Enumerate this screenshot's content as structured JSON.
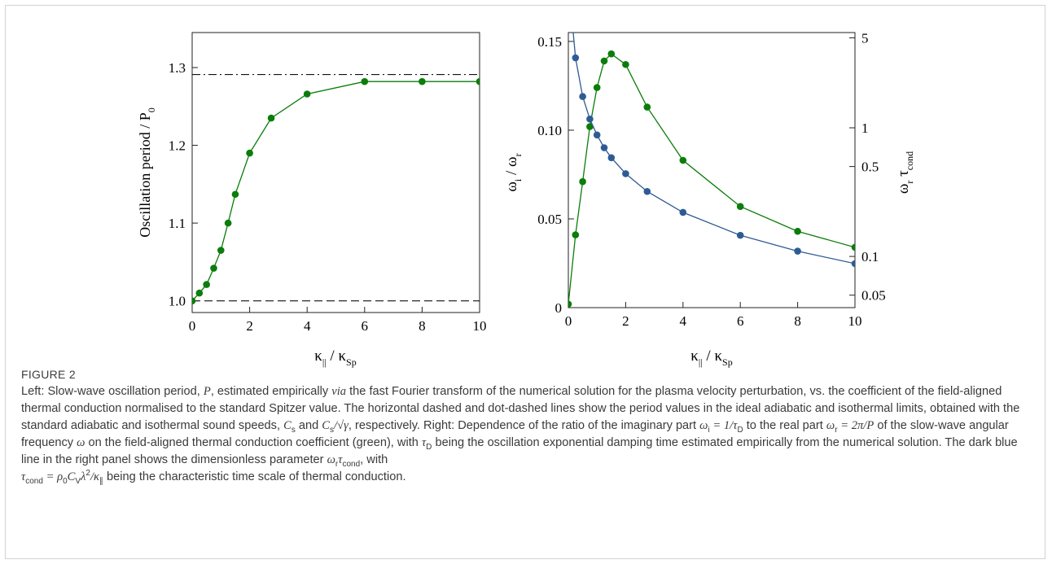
{
  "figure": {
    "label": "FIGURE 2",
    "caption": {
      "p1": "Left: Slow-wave oscillation period, ",
      "P": "P",
      "p2": ", estimated empirically ",
      "via": "via",
      "p3": " the fast Fourier transform of the numerical solution for the plasma velocity perturbation, vs. the coefficient of the field-aligned thermal conduction normalised to the standard Spitzer value. The horizontal dashed and dot-dashed lines show the period values in the ideal adiabatic and isothermal limits, obtained with the standard adiabatic and isothermal sound speeds, ",
      "cs1": "C",
      "cs1_sub": "s",
      "p4": " and ",
      "cs2": "C",
      "cs2_sub": "s",
      "cs2_tail": "/√γ",
      "p5": ", respectively. Right: Dependence of the ratio of the imaginary part ",
      "wi": "ω",
      "wi_sub": "i",
      "wi_def": " = 1/τ",
      "wi_def_sub": "D",
      "p6": " to the real part ",
      "wr": "ω",
      "wr_sub": "r",
      "wr_def": " = 2π/P",
      "p7": " of the slow-wave angular frequency ",
      "w": "ω",
      "p8": " on the field-aligned thermal conduction coefficient (green), with ",
      "tauD": "τ",
      "tauD_sub": "D",
      "p9": " being the oscillation exponential damping time estimated empirically from the numerical solution. The dark blue line in the right panel shows the dimensionless parameter ",
      "param": "ω",
      "param_sub": "r",
      "param2": "τ",
      "param2_sub": "cond",
      "p10": ", with",
      "tc": "τ",
      "tc_sub": "cond",
      "tc_def1": " = ρ",
      "tc_def1_sub": "0",
      "tc_def2": "C",
      "tc_def2_sub": "V",
      "tc_def3": "λ",
      "tc_def3_sup": "2",
      "tc_def4": "/κ",
      "tc_def4_sub": "∥",
      "p11": " being the characteristic time scale of thermal conduction."
    }
  },
  "chart_data": [
    {
      "type": "line",
      "panel": "left",
      "xlabel": {
        "main": "κ",
        "sub1": "||",
        "mid": " / κ",
        "sub2": "Sp"
      },
      "ylabel": {
        "main": "Oscillation period / P",
        "sub": "0"
      },
      "xlim": [
        0,
        10
      ],
      "ylim": [
        0.985,
        1.345
      ],
      "xticks": [
        0,
        2,
        4,
        6,
        8,
        10
      ],
      "yticks": [
        1.0,
        1.1,
        1.2,
        1.3
      ],
      "ytick_labels": [
        "1.0",
        "1.1",
        "1.2",
        "1.3"
      ],
      "reference_lines": [
        {
          "style": "dashed",
          "y": 1.0
        },
        {
          "style": "dash-dot",
          "y": 1.291
        }
      ],
      "series": [
        {
          "color": "#0a7d0a",
          "x": [
            0,
            0.25,
            0.5,
            0.75,
            1,
            1.25,
            1.5,
            2,
            2.75,
            4,
            6,
            8,
            10
          ],
          "y": [
            1.0,
            1.01,
            1.021,
            1.042,
            1.065,
            1.1,
            1.137,
            1.19,
            1.235,
            1.266,
            1.282,
            1.282,
            1.282
          ]
        }
      ]
    },
    {
      "type": "line",
      "panel": "right",
      "xlabel": {
        "main": "κ",
        "sub1": "||",
        "mid": " / κ",
        "sub2": "Sp"
      },
      "ylabel_left": {
        "a": "ω",
        "a_sub": "i",
        "mid": " / ω",
        "b_sub": "r"
      },
      "ylabel_right": {
        "a": "ω",
        "a_sub": "r",
        "b": " τ",
        "b_sub": "cond"
      },
      "xlim": [
        0,
        10
      ],
      "ylim_left": [
        0,
        0.155
      ],
      "ylim_right_log": [
        0.04,
        5.5
      ],
      "xticks": [
        0,
        2,
        4,
        6,
        8,
        10
      ],
      "yticks_left": [
        0,
        0.05,
        0.1,
        0.15
      ],
      "ytick_labels_left": [
        "0",
        "0.05",
        "0.10",
        "0.15"
      ],
      "yticks_right": [
        0.05,
        0.1,
        0.5,
        1,
        5
      ],
      "ytick_labels_right": [
        "0.05",
        "0.1",
        "0.5",
        "1",
        "5"
      ],
      "series": [
        {
          "color": "#0a7d0a",
          "axis": "left",
          "x": [
            0,
            0.25,
            0.5,
            0.75,
            1,
            1.25,
            1.5,
            2,
            2.75,
            4,
            6,
            8,
            10
          ],
          "y": [
            0.002,
            0.041,
            0.071,
            0.102,
            0.124,
            0.139,
            0.143,
            0.137,
            0.113,
            0.083,
            0.057,
            0.043,
            0.034
          ]
        },
        {
          "color": "#2e5b94",
          "axis": "right",
          "x": [
            0.25,
            0.5,
            0.75,
            1,
            1.25,
            1.5,
            2,
            2.75,
            4,
            6,
            8,
            10
          ],
          "y": [
            3.5,
            1.75,
            1.17,
            0.88,
            0.7,
            0.585,
            0.44,
            0.32,
            0.22,
            0.146,
            0.11,
            0.088
          ]
        }
      ]
    }
  ]
}
